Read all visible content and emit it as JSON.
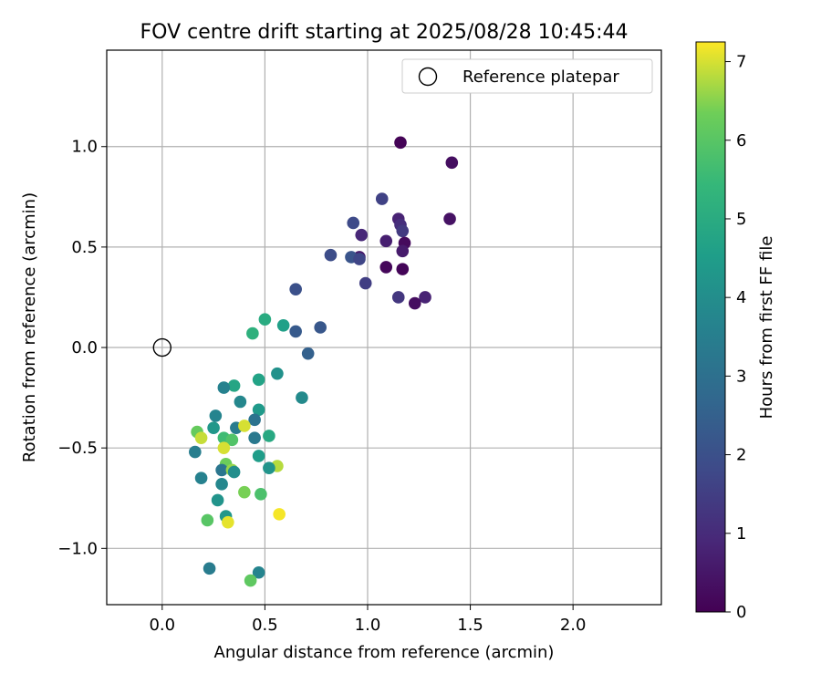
{
  "chart_data": {
    "type": "scatter",
    "title": "FOV centre drift starting at 2025/08/28 10:45:44",
    "xlabel": "Angular distance from reference (arcmin)",
    "ylabel": "Rotation from reference (arcmin)",
    "xlim": [
      -0.27,
      2.43
    ],
    "ylim": [
      -1.28,
      1.48
    ],
    "xticks": [
      0.0,
      0.5,
      1.0,
      1.5,
      2.0
    ],
    "xtick_labels": [
      "0.0",
      "0.5",
      "1.0",
      "1.5",
      "2.0"
    ],
    "yticks": [
      -1.0,
      -0.5,
      0.0,
      0.5,
      1.0
    ],
    "ytick_labels": [
      "−1.0",
      "−0.5",
      "0.0",
      "0.5",
      "1.0"
    ],
    "grid": true,
    "legend": {
      "label": "Reference platepar",
      "placement": "top-right",
      "marker": "open-circle"
    },
    "reference_point": {
      "x": 0.0,
      "y": 0.0
    },
    "colorbar": {
      "label": "Hours from first FF file",
      "colormap": "viridis",
      "range": [
        0,
        7.25
      ],
      "ticks": [
        0,
        1,
        2,
        3,
        4,
        5,
        6,
        7
      ],
      "tick_labels": [
        "0",
        "1",
        "2",
        "3",
        "4",
        "5",
        "6",
        "7"
      ]
    },
    "points": [
      {
        "x": 1.16,
        "y": 1.02,
        "c": 0.05
      },
      {
        "x": 1.41,
        "y": 0.92,
        "c": 0.3
      },
      {
        "x": 1.07,
        "y": 0.74,
        "c": 1.6
      },
      {
        "x": 1.15,
        "y": 0.64,
        "c": 0.8
      },
      {
        "x": 1.4,
        "y": 0.64,
        "c": 0.4
      },
      {
        "x": 0.93,
        "y": 0.62,
        "c": 1.8
      },
      {
        "x": 1.16,
        "y": 0.61,
        "c": 1.1
      },
      {
        "x": 1.17,
        "y": 0.58,
        "c": 1.4
      },
      {
        "x": 0.97,
        "y": 0.56,
        "c": 0.9
      },
      {
        "x": 1.09,
        "y": 0.53,
        "c": 0.7
      },
      {
        "x": 1.18,
        "y": 0.52,
        "c": 0.2
      },
      {
        "x": 1.17,
        "y": 0.48,
        "c": 0.6
      },
      {
        "x": 0.82,
        "y": 0.46,
        "c": 1.9
      },
      {
        "x": 0.96,
        "y": 0.45,
        "c": 0.5
      },
      {
        "x": 0.92,
        "y": 0.45,
        "c": 2.1
      },
      {
        "x": 0.96,
        "y": 0.44,
        "c": 1.7
      },
      {
        "x": 1.09,
        "y": 0.4,
        "c": 0.15
      },
      {
        "x": 1.17,
        "y": 0.39,
        "c": 0.1
      },
      {
        "x": 0.99,
        "y": 0.32,
        "c": 1.5
      },
      {
        "x": 0.65,
        "y": 0.29,
        "c": 2.0
      },
      {
        "x": 1.15,
        "y": 0.25,
        "c": 1.3
      },
      {
        "x": 1.28,
        "y": 0.25,
        "c": 0.8
      },
      {
        "x": 1.23,
        "y": 0.22,
        "c": 0.3
      },
      {
        "x": 0.5,
        "y": 0.14,
        "c": 5.0
      },
      {
        "x": 0.59,
        "y": 0.11,
        "c": 4.6
      },
      {
        "x": 0.77,
        "y": 0.1,
        "c": 2.2
      },
      {
        "x": 0.65,
        "y": 0.08,
        "c": 2.3
      },
      {
        "x": 0.44,
        "y": 0.07,
        "c": 5.2
      },
      {
        "x": 0.71,
        "y": -0.03,
        "c": 2.5
      },
      {
        "x": 0.56,
        "y": -0.13,
        "c": 4.1
      },
      {
        "x": 0.47,
        "y": -0.16,
        "c": 4.7
      },
      {
        "x": 0.35,
        "y": -0.19,
        "c": 4.8
      },
      {
        "x": 0.3,
        "y": -0.2,
        "c": 3.6
      },
      {
        "x": 0.68,
        "y": -0.25,
        "c": 3.9
      },
      {
        "x": 0.38,
        "y": -0.27,
        "c": 3.8
      },
      {
        "x": 0.47,
        "y": -0.31,
        "c": 4.4
      },
      {
        "x": 0.26,
        "y": -0.34,
        "c": 3.7
      },
      {
        "x": 0.45,
        "y": -0.36,
        "c": 3.1
      },
      {
        "x": 0.25,
        "y": -0.4,
        "c": 4.3
      },
      {
        "x": 0.36,
        "y": -0.4,
        "c": 3.4
      },
      {
        "x": 0.17,
        "y": -0.42,
        "c": 6.2
      },
      {
        "x": 0.52,
        "y": -0.44,
        "c": 4.9
      },
      {
        "x": 0.19,
        "y": -0.45,
        "c": 6.9
      },
      {
        "x": 0.3,
        "y": -0.45,
        "c": 5.6
      },
      {
        "x": 0.45,
        "y": -0.45,
        "c": 3.3
      },
      {
        "x": 0.34,
        "y": -0.46,
        "c": 5.9
      },
      {
        "x": 0.3,
        "y": -0.5,
        "c": 7.0
      },
      {
        "x": 0.16,
        "y": -0.52,
        "c": 3.5
      },
      {
        "x": 0.47,
        "y": -0.54,
        "c": 4.5
      },
      {
        "x": 0.31,
        "y": -0.58,
        "c": 6.3
      },
      {
        "x": 0.56,
        "y": -0.59,
        "c": 6.8
      },
      {
        "x": 0.52,
        "y": -0.6,
        "c": 4.2
      },
      {
        "x": 0.29,
        "y": -0.61,
        "c": 3.2
      },
      {
        "x": 0.34,
        "y": -0.61,
        "c": 6.6
      },
      {
        "x": 0.35,
        "y": -0.62,
        "c": 4.0
      },
      {
        "x": 0.19,
        "y": -0.65,
        "c": 3.6
      },
      {
        "x": 0.29,
        "y": -0.68,
        "c": 3.8
      },
      {
        "x": 0.4,
        "y": -0.72,
        "c": 6.4
      },
      {
        "x": 0.48,
        "y": -0.73,
        "c": 5.8
      },
      {
        "x": 0.27,
        "y": -0.76,
        "c": 4.2
      },
      {
        "x": 0.57,
        "y": -0.83,
        "c": 7.2
      },
      {
        "x": 0.31,
        "y": -0.84,
        "c": 4.3
      },
      {
        "x": 0.22,
        "y": -0.86,
        "c": 6.0
      },
      {
        "x": 0.32,
        "y": -0.87,
        "c": 7.1
      },
      {
        "x": 0.23,
        "y": -1.1,
        "c": 3.4
      },
      {
        "x": 0.47,
        "y": -1.12,
        "c": 3.7
      },
      {
        "x": 0.43,
        "y": -1.16,
        "c": 6.1
      },
      {
        "x": 0.4,
        "y": -0.39,
        "c": 7.0
      }
    ]
  }
}
